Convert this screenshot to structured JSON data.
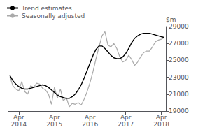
{
  "chart_data": {
    "type": "line",
    "ylabel": "$m",
    "categories": [
      null,
      null,
      null,
      "Apr\n2014",
      null,
      null,
      null,
      null,
      null,
      null,
      null,
      null,
      null,
      null,
      null,
      "Apr\n2015",
      null,
      null,
      null,
      null,
      null,
      null,
      null,
      null,
      null,
      null,
      null,
      "Apr\n2016",
      null,
      null,
      null,
      null,
      null,
      null,
      null,
      null,
      null,
      null,
      null,
      "Apr\n2017",
      null,
      null,
      null,
      null,
      null,
      null,
      null,
      null,
      null,
      null,
      null,
      "Apr\n2018",
      null
    ],
    "series": [
      {
        "name": "Trend estimates",
        "color": "#000000",
        "values": [
          23200,
          22600,
          22200,
          21900,
          21700,
          21600,
          21600,
          21700,
          21800,
          21900,
          22000,
          22100,
          22000,
          21800,
          21500,
          21200,
          20900,
          20700,
          20600,
          20500,
          20500,
          20700,
          21000,
          21500,
          22100,
          22900,
          23800,
          24700,
          25600,
          26300,
          26700,
          26700,
          26400,
          26000,
          25600,
          25300,
          25200,
          25200,
          25400,
          25800,
          26400,
          27100,
          27600,
          27900,
          28100,
          28200,
          28200,
          28200,
          28100,
          28000,
          27900,
          27800,
          27700
        ]
      },
      {
        "name": "Seasonally adjusted",
        "color": "#aaaaaa",
        "values": [
          23100,
          22000,
          21600,
          21400,
          22500,
          21300,
          21000,
          22000,
          21800,
          22300,
          22200,
          21700,
          21500,
          21000,
          19800,
          21800,
          20500,
          21600,
          20200,
          20600,
          19500,
          19900,
          19800,
          20000,
          19700,
          20400,
          21300,
          22400,
          23700,
          25200,
          26600,
          27900,
          28400,
          26800,
          26600,
          27000,
          26400,
          25400,
          24800,
          25000,
          25600,
          25100,
          24400,
          24800,
          25400,
          25900,
          26100,
          26100,
          26600,
          27200,
          27400,
          27500,
          27700
        ]
      }
    ],
    "ylim": [
      19000,
      29000
    ],
    "yticks": [
      19000,
      21000,
      23000,
      25000,
      27000,
      29000
    ],
    "grid": false,
    "legend": "top-left"
  }
}
